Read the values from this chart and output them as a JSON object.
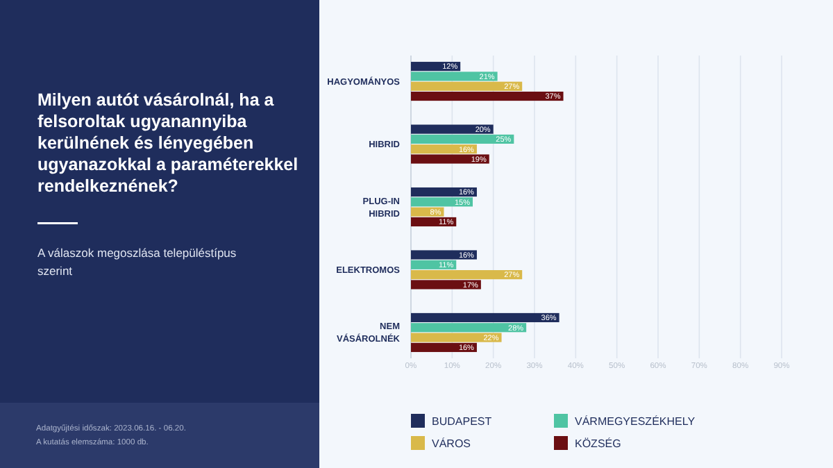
{
  "chart_data": {
    "type": "bar",
    "orientation": "horizontal",
    "title": "Milyen autót vásárolnál, ha a felsoroltak ugyanannyiba kerülnének és lényegében ugyanazokkal a paraméterekkel rendelkeznének?",
    "subtitle": "A válaszok megoszlása településtípus szerint",
    "annotations": [
      "Adatgyűjtési időszak: 2023.06.16. - 06.20.",
      "A kutatás elemszáma: 1000 db."
    ],
    "categories": [
      "HAGYOMÁNYOS",
      "HIBRID",
      "PLUG-IN HIBRID",
      "ELEKTROMOS",
      "NEM VÁSÁROLNÉK"
    ],
    "series": [
      {
        "name": "BUDAPEST",
        "color": "#1f2d5c",
        "values": [
          12,
          20,
          16,
          16,
          36
        ],
        "value_labels": [
          "12%",
          "20%",
          "16%",
          "16%",
          "36%"
        ]
      },
      {
        "name": "VÁRMEGYESZÉKHELY",
        "color": "#4fc4a3",
        "values": [
          21,
          25,
          15,
          11,
          28
        ],
        "value_labels": [
          "21%",
          "25%",
          "15%",
          "11%",
          "28%"
        ]
      },
      {
        "name": "VÁROS",
        "color": "#d9b94a",
        "values": [
          27,
          16,
          8,
          27,
          22
        ],
        "value_labels": [
          "27%",
          "16%",
          "8%",
          "27%",
          "22%"
        ]
      },
      {
        "name": "KÖZSÉG",
        "color": "#6b0f12",
        "values": [
          37,
          19,
          11,
          17,
          16
        ],
        "value_labels": [
          "37%",
          "19%",
          "11%",
          "17%",
          "16%"
        ]
      }
    ],
    "xlim": [
      0,
      90
    ],
    "xticks": [
      {
        "value": 0,
        "label": "0%"
      },
      {
        "value": 10,
        "label": "10%"
      },
      {
        "value": 20,
        "label": "20%"
      },
      {
        "value": 30,
        "label": "30%"
      },
      {
        "value": 40,
        "label": "40%"
      },
      {
        "value": 50,
        "label": "50%"
      },
      {
        "value": 60,
        "label": "60%"
      },
      {
        "value": 70,
        "label": "70%"
      },
      {
        "value": 80,
        "label": "80%"
      },
      {
        "value": 90,
        "label": "90%"
      }
    ],
    "grid": "x",
    "legend": "bottom"
  }
}
